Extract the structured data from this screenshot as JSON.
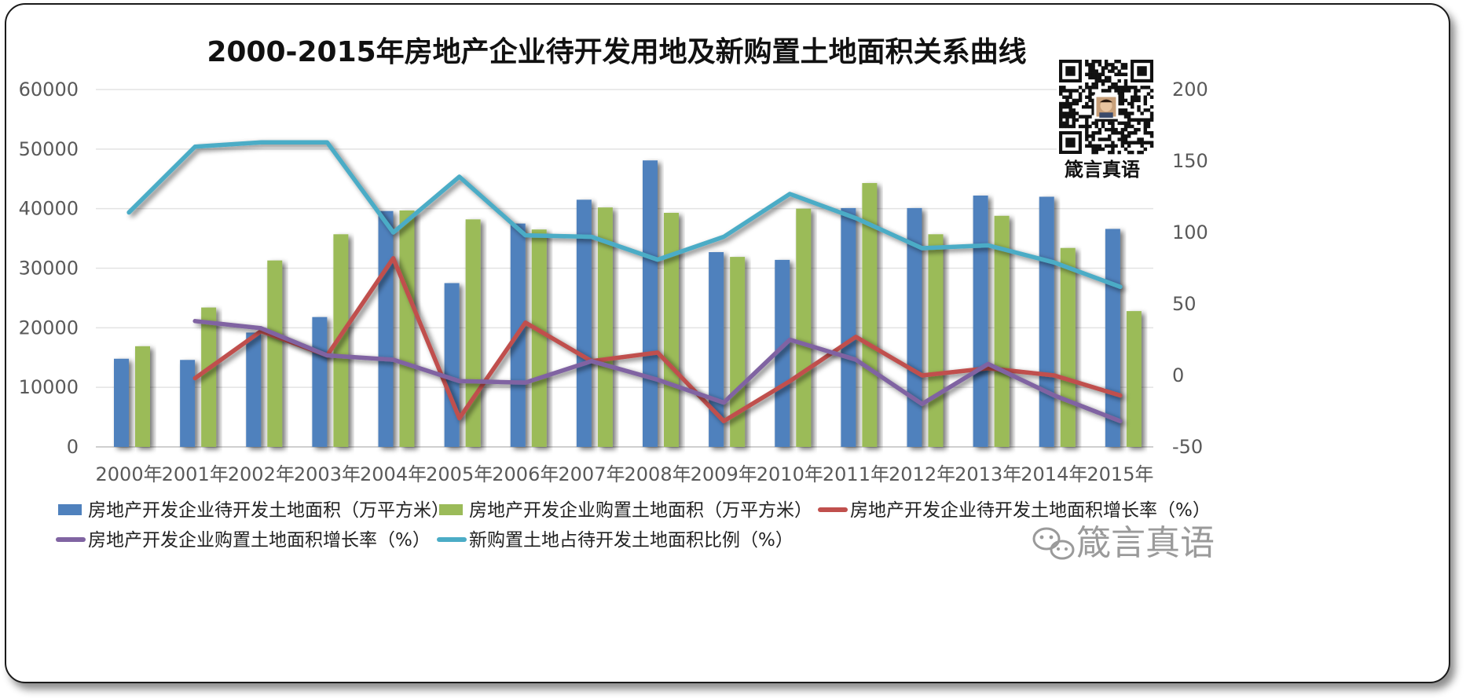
{
  "chart_data": {
    "type": "bar",
    "title": "2000-2015年房地产企业待开发用地及新购置土地面积关系曲线",
    "categories": [
      "2000年",
      "2001年",
      "2002年",
      "2003年",
      "2004年",
      "2005年",
      "2006年",
      "2007年",
      "2008年",
      "2009年",
      "2010年",
      "2011年",
      "2012年",
      "2013年",
      "2014年",
      "2015年"
    ],
    "y_left": {
      "ticks": [
        0,
        10000,
        20000,
        30000,
        40000,
        50000,
        60000
      ],
      "range": [
        0,
        60000
      ]
    },
    "y_right": {
      "ticks": [
        -50,
        0,
        50,
        100,
        150,
        200
      ],
      "range": [
        -50,
        200
      ]
    },
    "grid": true,
    "legend_position": "bottom",
    "series": [
      {
        "name": "房地产开发企业待开发土地面积（万平方米）",
        "type": "bar",
        "axis": "left",
        "color": "#4f81bd",
        "values": [
          14800,
          14600,
          19200,
          21800,
          39600,
          27500,
          37500,
          41500,
          48100,
          32700,
          31400,
          40100,
          40100,
          42200,
          42000,
          36600
        ]
      },
      {
        "name": "房地产开发企业购置土地面积（万平方米）",
        "type": "bar",
        "axis": "left",
        "color": "#9bbb59",
        "values": [
          16900,
          23400,
          31300,
          35700,
          39700,
          38200,
          36500,
          40200,
          39300,
          31900,
          40000,
          44300,
          35700,
          38800,
          33400,
          22800
        ]
      },
      {
        "name": "房地产开发企业待开发土地面积增长率（%）",
        "type": "line",
        "axis": "right",
        "color": "#c0504d",
        "values": [
          null,
          -2,
          31,
          14,
          82,
          -30,
          37,
          10,
          16,
          -32,
          -4,
          27,
          0,
          5,
          0,
          -14
        ]
      },
      {
        "name": "房地产开发企业购置土地面积增长率（%）",
        "type": "line",
        "axis": "right",
        "color": "#8064a2",
        "values": [
          null,
          38,
          33,
          14,
          11,
          -4,
          -5,
          10,
          -3,
          -19,
          25,
          11,
          -20,
          8,
          -14,
          -32
        ]
      },
      {
        "name": "新购置土地占待开发土地面积比例（%）",
        "type": "line",
        "axis": "right",
        "color": "#4bacc6",
        "values": [
          114,
          160,
          163,
          163,
          100,
          139,
          98,
          97,
          81,
          97,
          127,
          110,
          89,
          91,
          79,
          62
        ]
      }
    ]
  },
  "qr_caption": "箴言真语",
  "watermark": "箴言真语"
}
